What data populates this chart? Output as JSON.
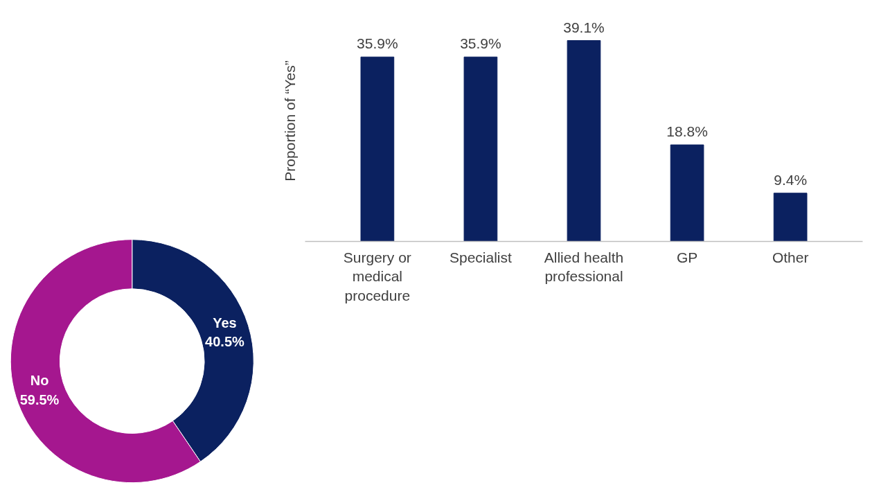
{
  "chart_data": [
    {
      "type": "donut",
      "categories": [
        "Yes",
        "No"
      ],
      "values": [
        40.5,
        59.5
      ],
      "colors": [
        "#0b2160",
        "#a5178f"
      ],
      "value_labels": [
        "40.5%",
        "59.5%"
      ]
    },
    {
      "type": "bar",
      "ylabel": "Proportion of “Yes”",
      "categories": [
        "Surgery or\nmedical\nprocedure",
        "Specialist",
        "Allied health\nprofessional",
        "GP",
        "Other"
      ],
      "values": [
        35.9,
        35.9,
        39.1,
        18.8,
        9.4
      ],
      "color": "#0b2160",
      "value_labels": [
        "35.9%",
        "35.9%",
        "39.1%",
        "18.8%",
        "9.4%"
      ],
      "grid": false
    }
  ]
}
